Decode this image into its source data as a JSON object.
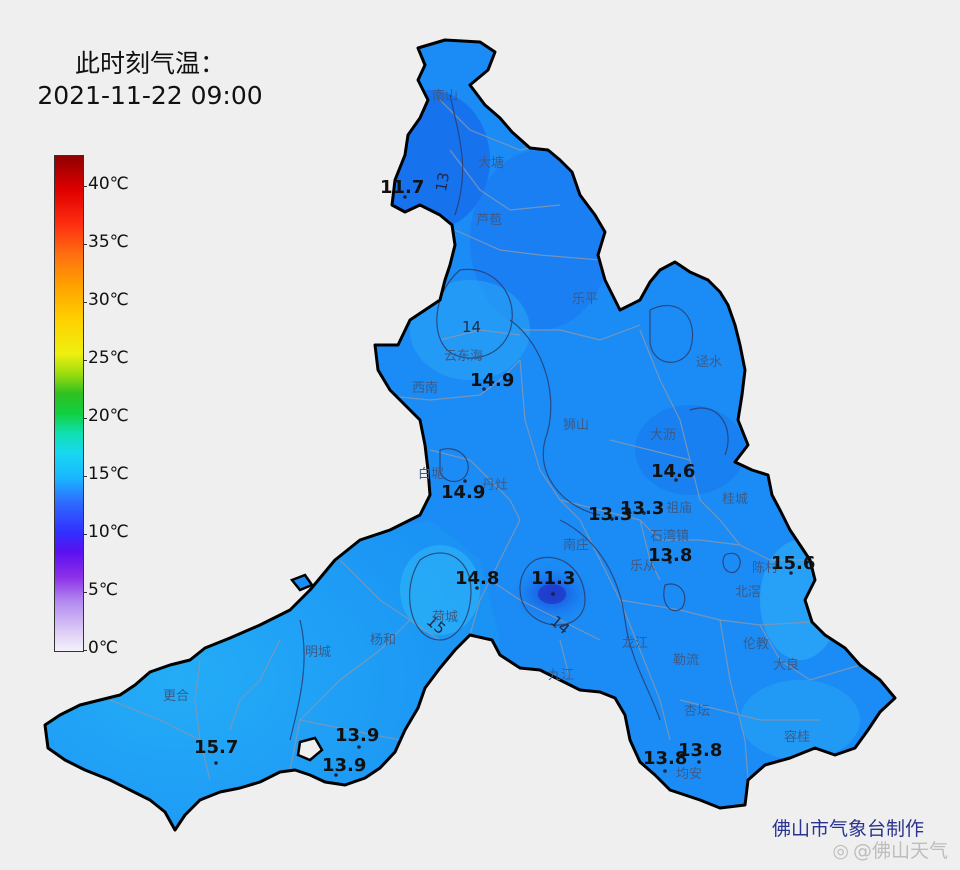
{
  "title": {
    "line1": "此时刻气温：",
    "line2": "2021-11-22 09:00"
  },
  "legend": {
    "unit": "℃",
    "labels": [
      "40℃",
      "35℃",
      "30℃",
      "25℃",
      "20℃",
      "15℃",
      "10℃",
      "5℃",
      "0℃"
    ]
  },
  "districts": [
    {
      "name": "南山"
    },
    {
      "name": "大塘"
    },
    {
      "name": "芦苞"
    },
    {
      "name": "乐平"
    },
    {
      "name": "迳水"
    },
    {
      "name": "云东海"
    },
    {
      "name": "西南"
    },
    {
      "name": "狮山"
    },
    {
      "name": "大沥"
    },
    {
      "name": "白坭"
    },
    {
      "name": "丹灶"
    },
    {
      "name": "祖庙"
    },
    {
      "name": "桂城"
    },
    {
      "name": "石湾镇"
    },
    {
      "name": "南庄"
    },
    {
      "name": "乐从"
    },
    {
      "name": "陈村"
    },
    {
      "name": "北滘"
    },
    {
      "name": "荷城"
    },
    {
      "name": "明城"
    },
    {
      "name": "杨和"
    },
    {
      "name": "更合"
    },
    {
      "name": "九江"
    },
    {
      "name": "龙江"
    },
    {
      "name": "勒流"
    },
    {
      "name": "伦教"
    },
    {
      "name": "大良"
    },
    {
      "name": "杏坛"
    },
    {
      "name": "容桂"
    },
    {
      "name": "均安"
    }
  ],
  "stations": [
    {
      "value": "11.7"
    },
    {
      "value": "14.9"
    },
    {
      "value": "14.9"
    },
    {
      "value": "14.6"
    },
    {
      "value": "13.3"
    },
    {
      "value": "13.3"
    },
    {
      "value": "13.8"
    },
    {
      "value": "15.6"
    },
    {
      "value": "14.8"
    },
    {
      "value": "11.3"
    },
    {
      "value": "15.7"
    },
    {
      "value": "13.9"
    },
    {
      "value": "13.9"
    },
    {
      "value": "13.8"
    },
    {
      "value": "13.8"
    }
  ],
  "isotherms": [
    {
      "label": "13"
    },
    {
      "label": "14"
    },
    {
      "label": "15"
    },
    {
      "label": "14"
    }
  ],
  "colors": {
    "map_fill": "#1a8af5",
    "map_fill_warm": "#22a6f6",
    "map_fill_cold": "#0f62e6",
    "boundary": "#000000",
    "credit": "#2a3490"
  },
  "credit": "佛山市气象台制作",
  "watermark": "@佛山天气"
}
